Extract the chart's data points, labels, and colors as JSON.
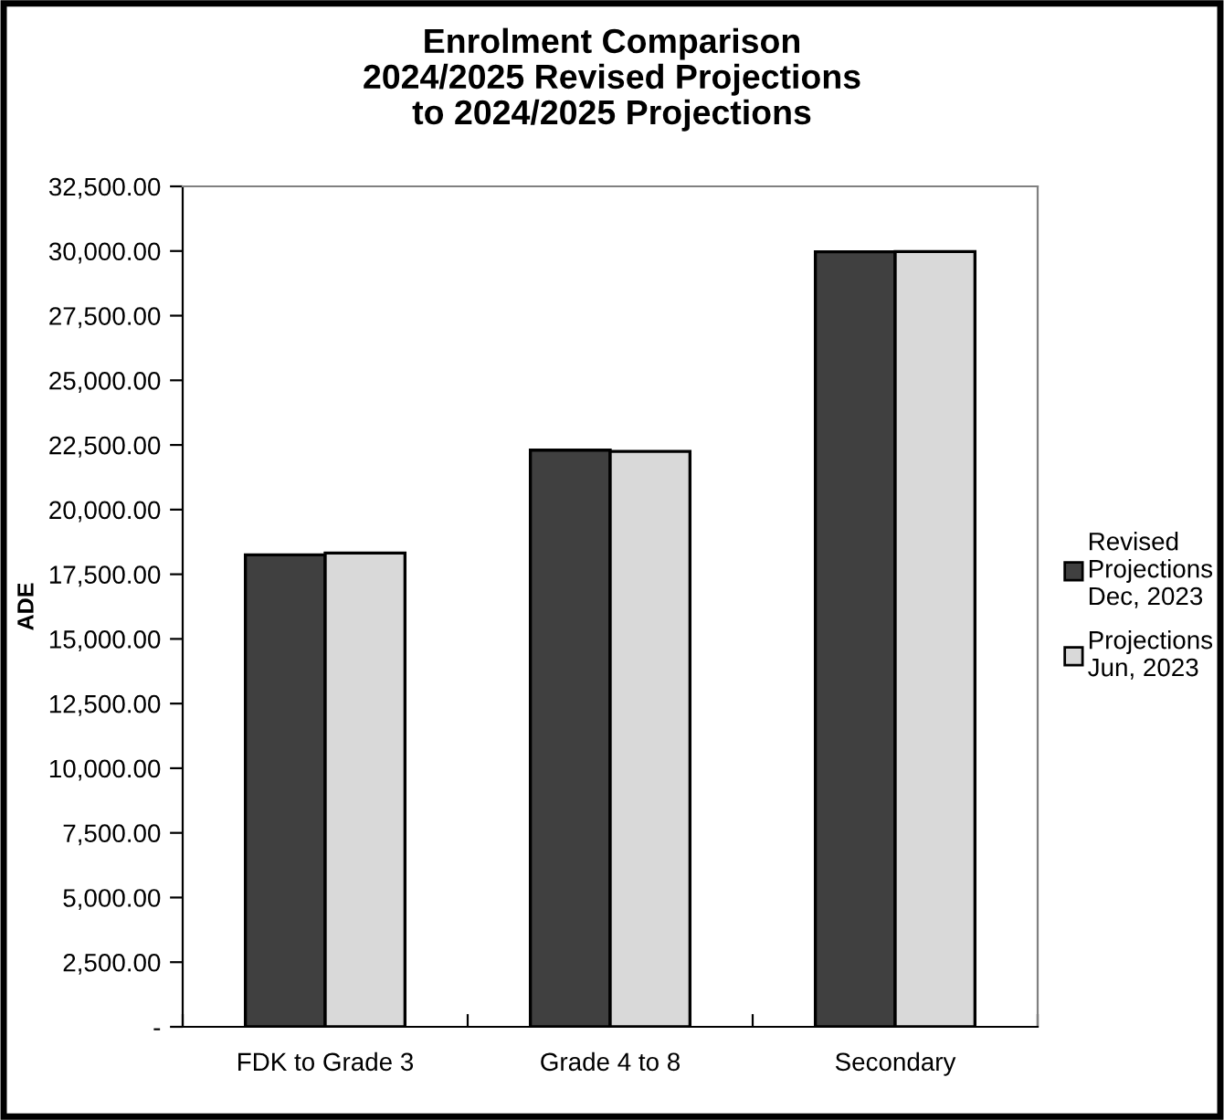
{
  "chart_data": {
    "type": "bar",
    "title": "Enrolment Comparison\n2024/2025 Revised Projections\nto 2024/2025 Projections",
    "ylabel": "ADE",
    "categories": [
      "FDK to Grade 3",
      "Grade 4 to 8",
      "Secondary"
    ],
    "series": [
      {
        "name": "Revised\nProjections\nDec, 2023",
        "color": "#404040",
        "values": [
          18250,
          22300,
          29970
        ]
      },
      {
        "name": "Projections\nJun, 2023",
        "color": "#d9d9d9",
        "values": [
          18320,
          22250,
          29980
        ]
      }
    ],
    "ylim": [
      0,
      32500
    ],
    "yticks": [
      {
        "value": 0,
        "label": "-"
      },
      {
        "value": 2500,
        "label": "2,500.00"
      },
      {
        "value": 5000,
        "label": "5,000.00"
      },
      {
        "value": 7500,
        "label": "7,500.00"
      },
      {
        "value": 10000,
        "label": "10,000.00"
      },
      {
        "value": 12500,
        "label": "12,500.00"
      },
      {
        "value": 15000,
        "label": "15,000.00"
      },
      {
        "value": 17500,
        "label": "17,500.00"
      },
      {
        "value": 20000,
        "label": "20,000.00"
      },
      {
        "value": 22500,
        "label": "22,500.00"
      },
      {
        "value": 25000,
        "label": "25,000.00"
      },
      {
        "value": 27500,
        "label": "27,500.00"
      },
      {
        "value": 30000,
        "label": "30,000.00"
      },
      {
        "value": 32500,
        "label": "32,500.00"
      }
    ],
    "grid": false,
    "legend": "right"
  }
}
